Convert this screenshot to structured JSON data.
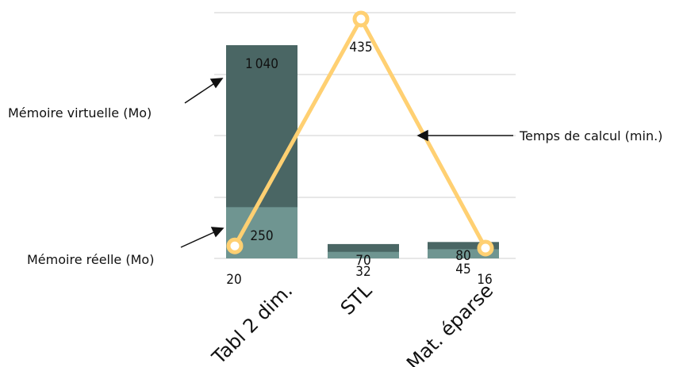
{
  "chart_data": {
    "type": "bar",
    "categories": [
      "Tabl 2 dim.",
      "STL",
      "Mat. éparse"
    ],
    "series": [
      {
        "name": "Mémoire virtuelle (Mo)",
        "values": [
          1040,
          70,
          80
        ],
        "color": "#4a6664"
      },
      {
        "name": "Mémoire réelle (Mo)",
        "values": [
          250,
          32,
          45
        ],
        "color": "#6f9591"
      },
      {
        "name": "Temps de calcul (min.)",
        "type": "line",
        "values": [
          20,
          435,
          16
        ],
        "color": "#ffd072"
      }
    ],
    "grid": true,
    "legend": "callouts"
  }
}
